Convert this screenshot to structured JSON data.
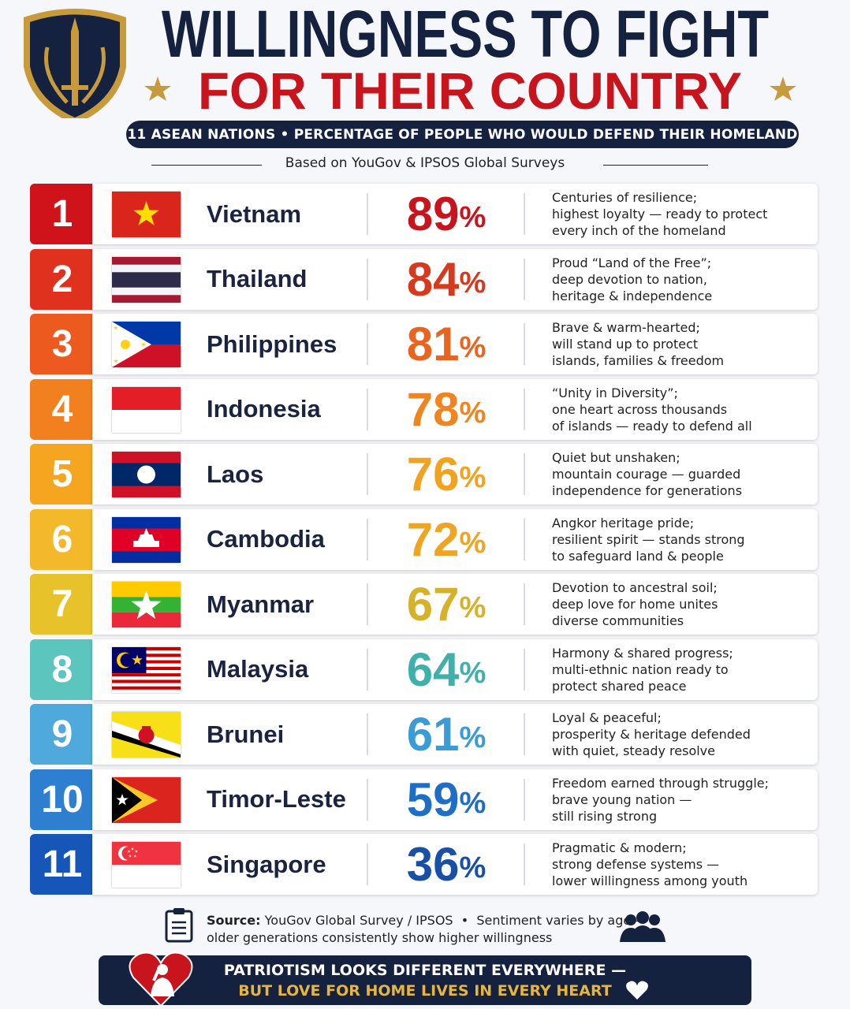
{
  "header": {
    "title_line1": "WILLINGNESS TO FIGHT",
    "title_line2": "FOR THEIR COUNTRY",
    "subtitle": "11 ASEAN NATIONS • PERCENTAGE OF PEOPLE WHO WOULD DEFEND THEIR HOMELAND",
    "based_on": "Based on YouGov & IPSOS Global Surveys"
  },
  "rows": [
    {
      "rank": 1,
      "country": "Vietnam",
      "value": 89,
      "unit": "%",
      "color": "#d0121b",
      "text_color": "#c8141c",
      "description": [
        "Centuries of resilience;",
        "highest loyalty — ready to protect",
        "every inch of the homeland"
      ]
    },
    {
      "rank": 2,
      "country": "Thailand",
      "value": 84,
      "unit": "%",
      "color": "#e0301e",
      "text_color": "#d63a1e",
      "description": [
        "Proud “Land of the Free”;",
        "deep devotion to nation,",
        "heritage & independence"
      ]
    },
    {
      "rank": 3,
      "country": "Philippines",
      "value": 81,
      "unit": "%",
      "color": "#ec5a1f",
      "text_color": "#e8641f",
      "description": [
        "Brave & warm-hearted;",
        "will stand up to protect",
        "islands, families & freedom"
      ]
    },
    {
      "rank": 4,
      "country": "Indonesia",
      "value": 78,
      "unit": "%",
      "color": "#f2801e",
      "text_color": "#f0841e",
      "description": [
        "“Unity in Diversity”;",
        "one heart across thousands",
        "of islands — ready to defend all"
      ]
    },
    {
      "rank": 5,
      "country": "Laos",
      "value": 76,
      "unit": "%",
      "color": "#f5a51f",
      "text_color": "#f1a21e",
      "description": [
        "Quiet but unshaken;",
        "mountain courage — guarded",
        "independence for generations"
      ]
    },
    {
      "rank": 6,
      "country": "Cambodia",
      "value": 72,
      "unit": "%",
      "color": "#f4b92a",
      "text_color": "#eea524",
      "description": [
        "Angkor heritage pride;",
        "resilient spirit — stands strong",
        "to safeguard land & people"
      ]
    },
    {
      "rank": 7,
      "country": "Myanmar",
      "value": 67,
      "unit": "%",
      "color": "#e8c22a",
      "text_color": "#d6b22a",
      "description": [
        "Devotion to ancestral soil;",
        "deep love for home unites",
        "diverse communities"
      ]
    },
    {
      "rank": 8,
      "country": "Malaysia",
      "value": 64,
      "unit": "%",
      "color": "#5cc5bd",
      "text_color": "#3fb0aa",
      "description": [
        "Harmony & shared progress;",
        "multi-ethnic nation ready to",
        "protect shared peace"
      ]
    },
    {
      "rank": 9,
      "country": "Brunei",
      "value": 61,
      "unit": "%",
      "color": "#4fa9dc",
      "text_color": "#3b9bd5",
      "description": [
        "Loyal & peaceful;",
        "prosperity & heritage defended",
        "with quiet, steady resolve"
      ]
    },
    {
      "rank": 10,
      "country": "Timor-Leste",
      "value": 59,
      "unit": "%",
      "color": "#2f7fd0",
      "text_color": "#1e6ec6",
      "description": [
        "Freedom earned through struggle;",
        "brave young nation —",
        "still rising strong"
      ]
    },
    {
      "rank": 11,
      "country": "Singapore",
      "value": 36,
      "unit": "%",
      "color": "#1656b8",
      "text_color": "#1a4fa8",
      "description": [
        "Pragmatic & modern;",
        "strong defense systems —",
        "lower willingness among youth"
      ]
    }
  ],
  "footer": {
    "source_label": "Source:",
    "source_lines": [
      "YouGov Global Survey / IPSOS  •  Sentiment varies by age —",
      "older generations consistently show higher willingness"
    ],
    "banner_line1": "PATRIOTISM LOOKS DIFFERENT EVERYWHERE —",
    "banner_line2": "BUT LOVE FOR HOME LIVES IN EVERY HEART"
  }
}
